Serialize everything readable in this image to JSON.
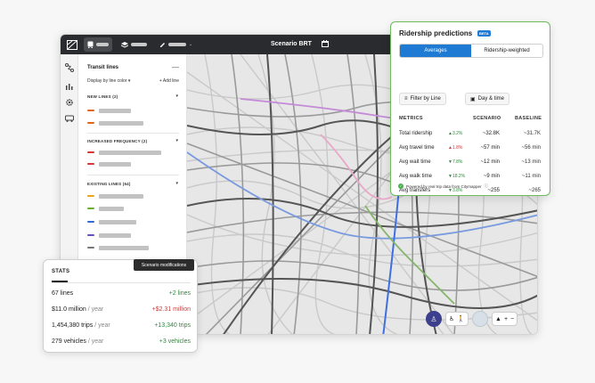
{
  "colors": {
    "accent": "#1f7ad4",
    "positive": "#2e8b3a",
    "negative": "#d33b3b",
    "card_border": "#6cbb5d"
  },
  "topbar": {
    "title": "Scenario BRT"
  },
  "panel": {
    "title": "Transit lines",
    "display_by": "Display by line color ▾",
    "add_line": "+  Add line",
    "sections": [
      {
        "header": "NEW LINES (2)",
        "colors": [
          "#e0661c",
          "#e0661c"
        ]
      },
      {
        "header": "INCREASED FREQUENCY (2)",
        "colors": [
          "#d03838",
          "#d03838"
        ]
      },
      {
        "header": "EXISTING LINES (64)",
        "colors": [
          "#e8a41c",
          "#6aaf2f",
          "#2f6bd0",
          "#6a4fb8",
          "#777777"
        ]
      }
    ]
  },
  "ridership": {
    "title": "Ridership predictions",
    "badge": "BETA",
    "tabs": [
      "Averages",
      "Ridership-weighted"
    ],
    "filters": [
      "Filter by Line",
      "Day & time"
    ],
    "columns": [
      "METRICS",
      "SCENARIO",
      "BASELINE"
    ],
    "rows": [
      {
        "label": "Total ridership",
        "delta": "▲3.2%",
        "dir": "up",
        "scenario": "~32.8K",
        "baseline": "~31.7K"
      },
      {
        "label": "Avg travel time",
        "delta": "▲1.8%",
        "dir": "bad",
        "scenario": "~57 min",
        "baseline": "~56 min"
      },
      {
        "label": "Avg wait time",
        "delta": "▼7.8%",
        "dir": "up",
        "scenario": "~12 min",
        "baseline": "~13 min"
      },
      {
        "label": "Avg walk time",
        "delta": "▼18.2%",
        "dir": "up",
        "scenario": "~9 min",
        "baseline": "~11 min"
      },
      {
        "label": "Avg transfers",
        "delta": "▼3.8%",
        "dir": "up",
        "scenario": "~255",
        "baseline": "~265"
      }
    ],
    "powered": "Powered by real trip data from Citymapper"
  },
  "tooltip": "Scenario modifications",
  "stats": {
    "title": "STATS",
    "rows": [
      {
        "value": "67 lines",
        "unit": "",
        "delta": "+2 lines",
        "dir": "up"
      },
      {
        "value": "$11.0 million",
        "unit": " / year",
        "delta": "+$2.31 million",
        "dir": "down"
      },
      {
        "value": "1,454,380 trips",
        "unit": " / year",
        "delta": "+13,340 trips",
        "dir": "up"
      },
      {
        "value": "279 vehicles",
        "unit": " / year",
        "delta": "+3 vehicles",
        "dir": "up"
      }
    ]
  }
}
